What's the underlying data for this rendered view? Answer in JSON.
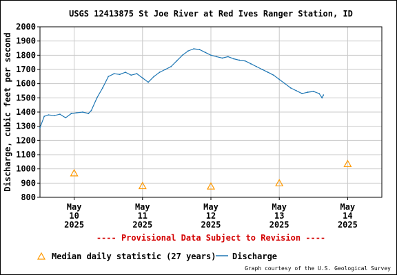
{
  "chart_data": {
    "type": "line",
    "title": "USGS 12413875 St Joe River at Red Ives Ranger Station, ID",
    "ylabel": "Discharge, cubic feet per second",
    "ylim": [
      800,
      2000
    ],
    "yticks": [
      800,
      900,
      1000,
      1100,
      1200,
      1300,
      1400,
      1500,
      1600,
      1700,
      1800,
      1900,
      2000
    ],
    "xlim": [
      "2025-05-09T12:00",
      "2025-05-14T12:00"
    ],
    "xticks": [
      {
        "x": "2025-05-10T00:00",
        "label": [
          "May",
          "10",
          "2025"
        ]
      },
      {
        "x": "2025-05-11T00:00",
        "label": [
          "May",
          "11",
          "2025"
        ]
      },
      {
        "x": "2025-05-12T00:00",
        "label": [
          "May",
          "12",
          "2025"
        ]
      },
      {
        "x": "2025-05-13T00:00",
        "label": [
          "May",
          "13",
          "2025"
        ]
      },
      {
        "x": "2025-05-14T00:00",
        "label": [
          "May",
          "14",
          "2025"
        ]
      }
    ],
    "grid": true,
    "provisional_note": "---- Provisional Data Subject to Revision ----",
    "credit": "Graph courtesy of the U.S. Geological Survey",
    "series": [
      {
        "name": "Discharge",
        "kind": "line",
        "color": "#1f77b4",
        "points": [
          [
            "2025-05-09T12:00",
            1290
          ],
          [
            "2025-05-09T13:30",
            1370
          ],
          [
            "2025-05-09T15:00",
            1380
          ],
          [
            "2025-05-09T17:00",
            1375
          ],
          [
            "2025-05-09T19:00",
            1385
          ],
          [
            "2025-05-09T21:00",
            1360
          ],
          [
            "2025-05-09T23:00",
            1390
          ],
          [
            "2025-05-10T01:00",
            1395
          ],
          [
            "2025-05-10T03:00",
            1400
          ],
          [
            "2025-05-10T05:00",
            1390
          ],
          [
            "2025-05-10T06:00",
            1410
          ],
          [
            "2025-05-10T08:00",
            1500
          ],
          [
            "2025-05-10T10:00",
            1570
          ],
          [
            "2025-05-10T12:00",
            1650
          ],
          [
            "2025-05-10T14:00",
            1670
          ],
          [
            "2025-05-10T16:00",
            1665
          ],
          [
            "2025-05-10T18:00",
            1680
          ],
          [
            "2025-05-10T20:00",
            1660
          ],
          [
            "2025-05-10T22:00",
            1670
          ],
          [
            "2025-05-11T00:00",
            1640
          ],
          [
            "2025-05-11T02:00",
            1610
          ],
          [
            "2025-05-11T04:00",
            1650
          ],
          [
            "2025-05-11T06:00",
            1680
          ],
          [
            "2025-05-11T08:00",
            1700
          ],
          [
            "2025-05-11T10:00",
            1720
          ],
          [
            "2025-05-11T12:00",
            1760
          ],
          [
            "2025-05-11T14:00",
            1800
          ],
          [
            "2025-05-11T16:00",
            1830
          ],
          [
            "2025-05-11T18:00",
            1845
          ],
          [
            "2025-05-11T20:00",
            1840
          ],
          [
            "2025-05-11T22:00",
            1820
          ],
          [
            "2025-05-12T00:00",
            1800
          ],
          [
            "2025-05-12T02:00",
            1790
          ],
          [
            "2025-05-12T04:00",
            1780
          ],
          [
            "2025-05-12T06:00",
            1790
          ],
          [
            "2025-05-12T08:00",
            1775
          ],
          [
            "2025-05-12T10:00",
            1765
          ],
          [
            "2025-05-12T12:00",
            1760
          ],
          [
            "2025-05-12T14:00",
            1740
          ],
          [
            "2025-05-12T16:00",
            1720
          ],
          [
            "2025-05-12T18:00",
            1700
          ],
          [
            "2025-05-12T20:00",
            1680
          ],
          [
            "2025-05-12T22:00",
            1660
          ],
          [
            "2025-05-13T00:00",
            1630
          ],
          [
            "2025-05-13T02:00",
            1600
          ],
          [
            "2025-05-13T04:00",
            1570
          ],
          [
            "2025-05-13T06:00",
            1550
          ],
          [
            "2025-05-13T08:00",
            1530
          ],
          [
            "2025-05-13T10:00",
            1540
          ],
          [
            "2025-05-13T12:00",
            1545
          ],
          [
            "2025-05-13T14:00",
            1530
          ],
          [
            "2025-05-13T15:00",
            1500
          ],
          [
            "2025-05-13T15:30",
            1520
          ]
        ]
      },
      {
        "name": "Median daily statistic (27 years)",
        "kind": "marker",
        "marker": "triangle",
        "color": "#ff9900",
        "points": [
          [
            "2025-05-10T00:00",
            970
          ],
          [
            "2025-05-11T00:00",
            880
          ],
          [
            "2025-05-12T00:00",
            877
          ],
          [
            "2025-05-13T00:00",
            900
          ],
          [
            "2025-05-14T00:00",
            1035
          ]
        ]
      }
    ],
    "legend": {
      "position": "bottom",
      "items": [
        {
          "label": "Median daily statistic (27 years)",
          "symbol": "triangle",
          "color": "#ff9900"
        },
        {
          "label": "Discharge",
          "symbol": "line",
          "color": "#1f77b4"
        }
      ]
    }
  }
}
